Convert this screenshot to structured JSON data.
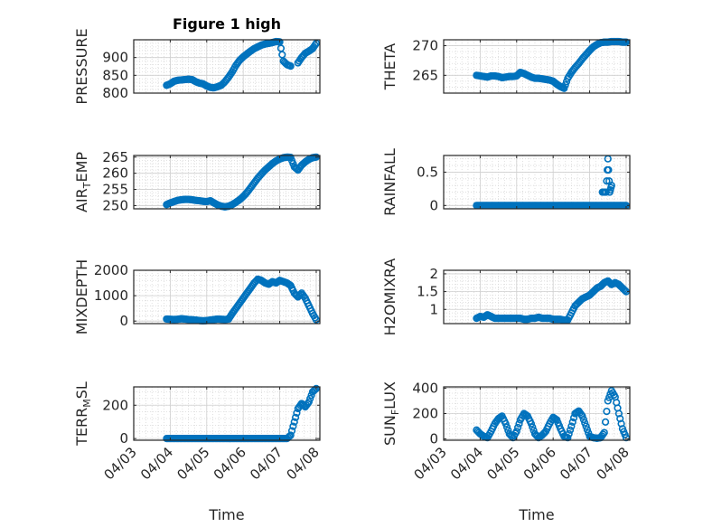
{
  "figure": {
    "title": "Figure 1 high",
    "xlabel": "Time",
    "x_ticks": [
      "04/03",
      "04/04",
      "04/05",
      "04/06",
      "04/07",
      "04/08"
    ],
    "marker_color": "#0072BD"
  },
  "chart_data": [
    {
      "type": "scatter",
      "name": "PRESSURE",
      "ylabel": "PRESSURE",
      "xlim": [
        0,
        5.1
      ],
      "ylim": [
        800,
        950
      ],
      "yticks": [
        800,
        850,
        900
      ],
      "ytick_labels": [
        "800",
        "850",
        "900"
      ],
      "x": [
        0.9,
        1.0,
        1.1,
        1.2,
        1.3,
        1.4,
        1.5,
        1.6,
        1.7,
        1.8,
        1.9,
        2.0,
        2.1,
        2.2,
        2.3,
        2.4,
        2.5,
        2.6,
        2.7,
        2.8,
        2.9,
        3.0,
        3.1,
        3.2,
        3.3,
        3.4,
        3.5,
        3.6,
        3.7,
        3.8,
        3.9,
        4.0,
        4.1,
        4.2,
        4.3,
        4.5,
        4.6,
        4.7,
        4.8,
        4.9,
        5.0
      ],
      "y": [
        822,
        826,
        833,
        836,
        837,
        838,
        839,
        838,
        832,
        828,
        826,
        820,
        816,
        815,
        818,
        822,
        832,
        845,
        860,
        878,
        892,
        902,
        910,
        918,
        925,
        930,
        935,
        938,
        940,
        942,
        945,
        944,
        890,
        880,
        876,
        885,
        900,
        912,
        918,
        925,
        940
      ]
    },
    {
      "type": "scatter",
      "name": "THETA",
      "ylabel": "THETA",
      "xlim": [
        0,
        5.1
      ],
      "ylim": [
        262,
        271
      ],
      "yticks": [
        265,
        270
      ],
      "ytick_labels": [
        "265",
        "270"
      ],
      "x": [
        0.9,
        1.0,
        1.1,
        1.2,
        1.3,
        1.4,
        1.5,
        1.6,
        1.7,
        1.8,
        1.9,
        2.0,
        2.1,
        2.2,
        2.3,
        2.4,
        2.5,
        2.6,
        2.7,
        2.8,
        2.9,
        3.0,
        3.1,
        3.2,
        3.3,
        3.4,
        3.5,
        3.6,
        3.7,
        3.8,
        3.9,
        4.0,
        4.1,
        4.2,
        4.3,
        4.4,
        4.5,
        4.6,
        4.7,
        4.8,
        4.9,
        5.0
      ],
      "y": [
        265.0,
        264.9,
        264.8,
        264.7,
        264.9,
        264.9,
        264.8,
        264.6,
        264.7,
        264.8,
        264.8,
        264.9,
        265.5,
        265.3,
        265.0,
        264.7,
        264.5,
        264.5,
        264.4,
        264.3,
        264.2,
        264.0,
        263.5,
        263.1,
        262.8,
        264.5,
        265.5,
        266.3,
        267.0,
        267.8,
        268.5,
        269.2,
        269.8,
        270.2,
        270.5,
        270.6,
        270.6,
        270.7,
        270.7,
        270.7,
        270.6,
        270.6
      ]
    },
    {
      "type": "scatter",
      "name": "AIR_TEMP",
      "ylabel": "AIR_TEMP",
      "xlim": [
        0,
        5.1
      ],
      "ylim": [
        249,
        265.5
      ],
      "yticks": [
        250,
        255,
        260,
        265
      ],
      "ytick_labels": [
        "250",
        "255",
        "260",
        "265"
      ],
      "x": [
        0.9,
        1.0,
        1.1,
        1.2,
        1.3,
        1.4,
        1.5,
        1.6,
        1.7,
        1.8,
        1.9,
        2.0,
        2.1,
        2.2,
        2.3,
        2.4,
        2.5,
        2.6,
        2.7,
        2.8,
        2.9,
        3.0,
        3.1,
        3.2,
        3.3,
        3.4,
        3.5,
        3.6,
        3.7,
        3.8,
        3.9,
        4.0,
        4.1,
        4.2,
        4.3,
        4.4,
        4.5,
        4.6,
        4.7,
        4.8,
        4.9,
        5.0
      ],
      "y": [
        250.3,
        250.8,
        251.2,
        251.6,
        251.8,
        251.9,
        251.9,
        251.8,
        251.6,
        251.5,
        251.3,
        251.2,
        251.5,
        250.8,
        250.2,
        249.8,
        249.6,
        249.8,
        250.3,
        251.0,
        251.8,
        252.8,
        254.0,
        255.5,
        257.0,
        258.5,
        259.8,
        261.0,
        262.0,
        263.0,
        263.8,
        264.4,
        264.8,
        265.0,
        264.9,
        262.0,
        261.0,
        262.5,
        263.5,
        264.3,
        264.8,
        265.0
      ]
    },
    {
      "type": "scatter",
      "name": "RAINFALL",
      "ylabel": "RAINFALL",
      "xlim": [
        0,
        5.1
      ],
      "ylim": [
        -0.05,
        0.75
      ],
      "yticks": [
        0,
        0.5
      ],
      "ytick_labels": [
        "0",
        "0.5"
      ],
      "x": [
        0.9,
        1.0,
        1.1,
        1.2,
        1.3,
        1.4,
        1.5,
        1.6,
        1.7,
        1.8,
        1.9,
        2.0,
        2.1,
        2.2,
        2.3,
        2.4,
        2.5,
        2.6,
        2.7,
        2.8,
        2.9,
        3.0,
        3.1,
        3.2,
        3.3,
        3.4,
        3.5,
        3.6,
        3.7,
        3.8,
        3.9,
        4.0,
        4.1,
        4.2,
        4.3,
        4.4,
        4.5,
        4.6,
        4.7,
        4.8,
        4.9,
        5.0,
        4.35,
        4.45,
        4.5,
        4.55,
        4.6
      ],
      "y": [
        0,
        0,
        0,
        0,
        0,
        0,
        0,
        0,
        0,
        0,
        0,
        0,
        0,
        0,
        0,
        0,
        0,
        0,
        0,
        0,
        0,
        0,
        0,
        0,
        0,
        0,
        0,
        0,
        0,
        0,
        0,
        0,
        0,
        0,
        0,
        0,
        0,
        0,
        0,
        0,
        0,
        0,
        0.2,
        0.2,
        0.7,
        0.2,
        0.3
      ]
    },
    {
      "type": "scatter",
      "name": "MIXDEPTH",
      "ylabel": "MIXDEPTH",
      "xlim": [
        0,
        5.1
      ],
      "ylim": [
        -100,
        2000
      ],
      "yticks": [
        0,
        1000,
        2000
      ],
      "ytick_labels": [
        "0",
        "1000",
        "2000"
      ],
      "x": [
        0.9,
        1.0,
        1.1,
        1.2,
        1.3,
        1.4,
        1.5,
        1.6,
        1.7,
        1.8,
        1.9,
        2.0,
        2.1,
        2.2,
        2.3,
        2.4,
        2.5,
        2.6,
        2.7,
        2.8,
        2.9,
        3.0,
        3.1,
        3.2,
        3.3,
        3.4,
        3.5,
        3.6,
        3.7,
        3.8,
        3.9,
        4.0,
        4.1,
        4.2,
        4.3,
        4.4,
        4.5,
        4.6,
        4.7,
        4.8,
        4.9,
        5.0
      ],
      "y": [
        80,
        70,
        60,
        70,
        90,
        80,
        60,
        50,
        40,
        20,
        10,
        20,
        40,
        60,
        80,
        70,
        60,
        80,
        300,
        500,
        700,
        900,
        1100,
        1300,
        1500,
        1650,
        1600,
        1500,
        1450,
        1550,
        1500,
        1600,
        1550,
        1500,
        1400,
        1100,
        950,
        1100,
        900,
        600,
        300,
        50
      ]
    },
    {
      "type": "scatter",
      "name": "H2OMIXRA",
      "ylabel": "H2OMIXRA",
      "xlim": [
        0,
        5.1
      ],
      "ylim": [
        0.6,
        2.1
      ],
      "yticks": [
        1,
        1.5,
        2
      ],
      "ytick_labels": [
        "1",
        "1.5",
        "2"
      ],
      "x": [
        0.9,
        1.0,
        1.1,
        1.2,
        1.3,
        1.4,
        1.5,
        1.6,
        1.7,
        1.8,
        1.9,
        2.0,
        2.1,
        2.2,
        2.3,
        2.4,
        2.5,
        2.6,
        2.7,
        2.8,
        2.9,
        3.0,
        3.1,
        3.2,
        3.3,
        3.4,
        3.5,
        3.6,
        3.7,
        3.8,
        3.9,
        4.0,
        4.1,
        4.2,
        4.3,
        4.4,
        4.5,
        4.6,
        4.7,
        4.8,
        4.9,
        5.0
      ],
      "y": [
        0.75,
        0.8,
        0.78,
        0.85,
        0.8,
        0.75,
        0.75,
        0.75,
        0.75,
        0.75,
        0.75,
        0.75,
        0.75,
        0.72,
        0.72,
        0.75,
        0.75,
        0.78,
        0.75,
        0.75,
        0.75,
        0.72,
        0.72,
        0.72,
        0.7,
        0.7,
        0.9,
        1.1,
        1.2,
        1.3,
        1.35,
        1.4,
        1.5,
        1.6,
        1.65,
        1.75,
        1.8,
        1.7,
        1.75,
        1.7,
        1.6,
        1.5
      ]
    },
    {
      "type": "scatter",
      "name": "TERR_MSL",
      "ylabel": "TERR_MSL",
      "xlim": [
        0,
        5.1
      ],
      "ylim": [
        -10,
        310
      ],
      "yticks": [
        0,
        200
      ],
      "ytick_labels": [
        "0",
        "200"
      ],
      "x": [
        0.9,
        1.0,
        1.1,
        1.2,
        1.3,
        1.4,
        1.5,
        1.6,
        1.7,
        1.8,
        1.9,
        2.0,
        2.1,
        2.2,
        2.3,
        2.4,
        2.5,
        2.6,
        2.7,
        2.8,
        2.9,
        3.0,
        3.1,
        3.2,
        3.3,
        3.4,
        3.5,
        3.6,
        3.7,
        3.8,
        3.9,
        4.0,
        4.1,
        4.2,
        4.3,
        4.4,
        4.5,
        4.6,
        4.7,
        4.8,
        4.9,
        5.0
      ],
      "y": [
        0,
        0,
        0,
        0,
        0,
        0,
        0,
        0,
        0,
        0,
        0,
        0,
        0,
        0,
        0,
        0,
        0,
        0,
        0,
        0,
        0,
        0,
        0,
        0,
        0,
        0,
        0,
        0,
        0,
        0,
        0,
        0,
        0,
        0,
        20,
        100,
        180,
        210,
        190,
        220,
        280,
        300
      ]
    },
    {
      "type": "scatter",
      "name": "SUN_FLUX",
      "ylabel": "SUN_FLUX",
      "xlim": [
        0,
        5.1
      ],
      "ylim": [
        -10,
        410
      ],
      "yticks": [
        0,
        200,
        400
      ],
      "ytick_labels": [
        "0",
        "200",
        "400"
      ],
      "x": [
        0.9,
        1.0,
        1.1,
        1.2,
        1.3,
        1.4,
        1.5,
        1.6,
        1.7,
        1.8,
        1.9,
        2.0,
        2.1,
        2.2,
        2.3,
        2.4,
        2.5,
        2.6,
        2.7,
        2.8,
        2.9,
        3.0,
        3.1,
        3.2,
        3.3,
        3.4,
        3.5,
        3.6,
        3.7,
        3.8,
        3.9,
        4.0,
        4.1,
        4.2,
        4.3,
        4.4,
        4.5,
        4.6,
        4.7,
        4.8,
        4.9,
        5.0
      ],
      "y": [
        70,
        40,
        20,
        10,
        60,
        120,
        160,
        180,
        120,
        40,
        10,
        60,
        150,
        200,
        180,
        120,
        40,
        10,
        30,
        60,
        120,
        170,
        150,
        80,
        20,
        10,
        100,
        200,
        220,
        180,
        100,
        20,
        10,
        5,
        10,
        50,
        300,
        380,
        330,
        200,
        80,
        10
      ]
    }
  ]
}
